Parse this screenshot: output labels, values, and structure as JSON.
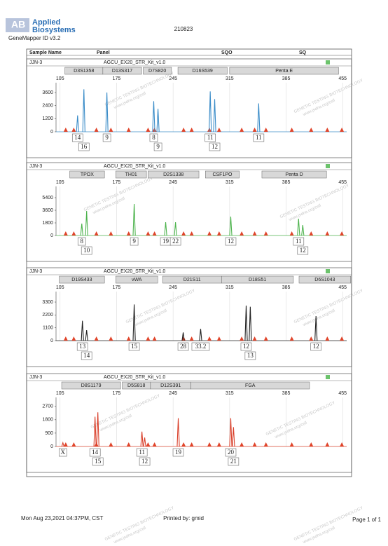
{
  "header": {
    "brand_line1": "Applied",
    "brand_line2": "Biosystems",
    "software": "GeneMapper ID v3.2",
    "run_id": "210823"
  },
  "columns": {
    "sample": "Sample Name",
    "panel": "Panel",
    "sqo": "SQO",
    "sq": "SQ"
  },
  "watermark": {
    "line1": "GENETIC TESTING BIOTECHNOLOGY",
    "line2": "www.jsdna.org/cell"
  },
  "size_standard_peaks": [
    112,
    122,
    150,
    168,
    190,
    214,
    222,
    258,
    268,
    290,
    302,
    330,
    346,
    360,
    392,
    416,
    436,
    454
  ],
  "panels": [
    {
      "sample": "JJN-3",
      "kit": "AGCU_EX20_STR_Kit_v1.0",
      "color": "#3a8cc8",
      "markers": [
        {
          "name": "D3S1358",
          "range": [
            111,
            158
          ]
        },
        {
          "name": "D13S317",
          "range": [
            158,
            206
          ]
        },
        {
          "name": "D7S820",
          "range": [
            208,
            243
          ]
        },
        {
          "name": "D16S539",
          "range": [
            251,
            312
          ]
        },
        {
          "name": "Penta E",
          "range": [
            315,
            450
          ]
        }
      ],
      "xlim": [
        100,
        460
      ],
      "xticks": [
        105,
        175,
        245,
        315,
        385,
        455
      ],
      "ylim": [
        0,
        4500
      ],
      "yticks": [
        0,
        1200,
        2400,
        3600
      ],
      "peaks": [
        {
          "allele": "14",
          "x": 126.7,
          "height": 1500
        },
        {
          "allele": "16",
          "x": 134.5,
          "height": 3900
        },
        {
          "allele": "9",
          "x": 163,
          "height": 3600
        },
        {
          "allele": "8",
          "x": 221,
          "height": 2800
        },
        {
          "allele": "9",
          "x": 226.3,
          "height": 2100
        },
        {
          "allele": "11",
          "x": 291,
          "height": 3700
        },
        {
          "allele": "12",
          "x": 296.5,
          "height": 3000
        },
        {
          "allele": "11",
          "x": 351,
          "height": 2600
        }
      ]
    },
    {
      "sample": "JJN-3",
      "kit": "AGCU_EX20_STR_Kit_v1.0",
      "color": "#4db34d",
      "markers": [
        {
          "name": "TPOX",
          "range": [
            117,
            160
          ]
        },
        {
          "name": "TH01",
          "range": [
            174,
            212
          ]
        },
        {
          "name": "D2S1338",
          "range": [
            214,
            277
          ]
        },
        {
          "name": "CSF1PO",
          "range": [
            285,
            327
          ]
        },
        {
          "name": "Penta D",
          "range": [
            355,
            435
          ]
        }
      ],
      "xlim": [
        100,
        460
      ],
      "xticks": [
        105,
        175,
        245,
        315,
        385,
        455
      ],
      "ylim": [
        0,
        7000
      ],
      "yticks": [
        0,
        1800,
        3600,
        5400
      ],
      "peaks": [
        {
          "allele": "8",
          "x": 131.9,
          "height": 1700
        },
        {
          "allele": "10",
          "x": 137.9,
          "height": 3500
        },
        {
          "allele": "9",
          "x": 196.8,
          "height": 4500
        },
        {
          "allele": "19",
          "x": 235.8,
          "height": 1900
        },
        {
          "allele": "22",
          "x": 248,
          "height": 1900
        },
        {
          "allele": "12",
          "x": 316.4,
          "height": 2700
        },
        {
          "allele": "11",
          "x": 400.4,
          "height": 2400
        },
        {
          "allele": "12",
          "x": 405.6,
          "height": 1500
        }
      ]
    },
    {
      "sample": "JJN-3",
      "kit": "AGCU_EX20_STR_Kit_v1.0",
      "color": "#222222",
      "markers": [
        {
          "name": "D19S433",
          "range": [
            104,
            160
          ]
        },
        {
          "name": "vWA",
          "range": [
            174,
            226
          ]
        },
        {
          "name": "D21S11",
          "range": [
            232,
            305
          ]
        },
        {
          "name": "D18S51",
          "range": [
            305,
            394
          ]
        },
        {
          "name": "D6S1043",
          "range": [
            401,
            465
          ]
        }
      ],
      "xlim": [
        100,
        460
      ],
      "xticks": [
        105,
        175,
        245,
        315,
        385,
        455
      ],
      "ylim": [
        0,
        4200
      ],
      "yticks": [
        0,
        1100,
        2200,
        3300
      ],
      "peaks": [
        {
          "allele": "13",
          "x": 132.7,
          "height": 1700
        },
        {
          "allele": "14",
          "x": 137.9,
          "height": 900
        },
        {
          "allele": "15",
          "x": 196.8,
          "height": 3100
        },
        {
          "allele": "28",
          "x": 257.5,
          "height": 700
        },
        {
          "allele": "33.2",
          "x": 279.1,
          "height": 1000
        },
        {
          "allele": "12",
          "x": 335.5,
          "height": 3000
        },
        {
          "allele": "13",
          "x": 340.6,
          "height": 2900
        },
        {
          "allele": "12",
          "x": 422,
          "height": 2100
        }
      ]
    },
    {
      "sample": "JJN-3",
      "kit": "AGCU_EX20_STR_Kit_v1.0",
      "color": "#d9402b",
      "markers": [
        {
          "name": "D8S1179",
          "range": [
            107,
            180
          ]
        },
        {
          "name": "D5S818",
          "range": [
            182,
            217
          ]
        },
        {
          "name": "D12S391",
          "range": [
            217,
            267
          ]
        },
        {
          "name": "FGA",
          "range": [
            267,
            414
          ]
        }
      ],
      "xlim": [
        100,
        460
      ],
      "xticks": [
        105,
        175,
        245,
        315,
        385,
        455
      ],
      "ylim": [
        0,
        3300
      ],
      "yticks": [
        0,
        900,
        1800,
        2700
      ],
      "peaks": [
        {
          "allele": "X",
          "x": 108.5,
          "height": 250
        },
        {
          "allele": "14",
          "x": 148.3,
          "height": 2000
        },
        {
          "allele": "15",
          "x": 151.8,
          "height": 2300
        },
        {
          "allele": "11",
          "x": 206.4,
          "height": 1000
        },
        {
          "allele": "12",
          "x": 209.8,
          "height": 600
        },
        {
          "allele": "19",
          "x": 251.4,
          "height": 1900
        },
        {
          "allele": "20",
          "x": 316.4,
          "height": 1900
        },
        {
          "allele": "21",
          "x": 319.8,
          "height": 1300
        }
      ]
    }
  ],
  "footer": {
    "date": "Mon Aug 23,2021 04:37PM, CST",
    "printed_by": "Printed by: gmid",
    "page": "Page 1 of 1"
  }
}
